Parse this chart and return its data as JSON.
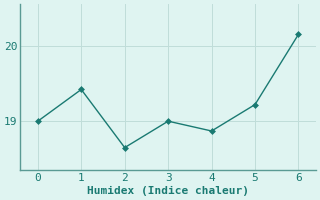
{
  "x": [
    0,
    1,
    2,
    3,
    4,
    5,
    6
  ],
  "y": [
    19.0,
    19.42,
    18.65,
    19.0,
    18.87,
    19.22,
    20.15
  ],
  "line_color": "#1a7a72",
  "marker": "D",
  "marker_size": 3,
  "background_color": "#dff4f1",
  "grid_color": "#c0ddd9",
  "axes_spine_color": "#5a9a94",
  "xlabel": "Humidex (Indice chaleur)",
  "xlabel_fontsize": 8,
  "yticks": [
    19,
    20
  ],
  "xticks": [
    0,
    1,
    2,
    3,
    4,
    5,
    6
  ],
  "xlim": [
    -0.4,
    6.4
  ],
  "ylim": [
    18.35,
    20.55
  ],
  "tick_color": "#1a7a72",
  "label_color": "#1a7a72",
  "tick_fontsize": 8
}
